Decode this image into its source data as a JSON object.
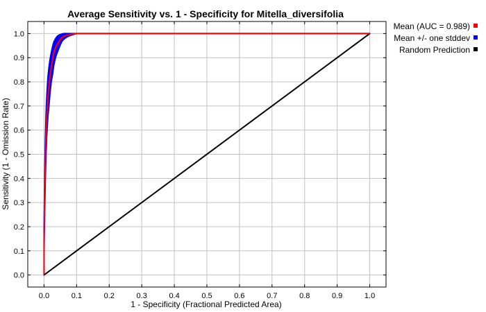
{
  "chart_data": {
    "type": "line",
    "title": "Average Sensitivity vs. 1 - Specificity for Mitella_diversifolia",
    "xlabel": "1 - Specificity (Fractional Predicted Area)",
    "ylabel": "Sensitivity (1 - Omission Rate)",
    "xlim": [
      -0.05,
      1.05
    ],
    "ylim": [
      -0.05,
      1.05
    ],
    "grid": true,
    "legend_position": "right-outside",
    "x_ticks": [
      "0.0",
      "0.1",
      "0.2",
      "0.3",
      "0.4",
      "0.5",
      "0.6",
      "0.7",
      "0.8",
      "0.9",
      "1.0"
    ],
    "y_ticks": [
      "0.0",
      "0.1",
      "0.2",
      "0.3",
      "0.4",
      "0.5",
      "0.6",
      "0.7",
      "0.8",
      "0.9",
      "1.0"
    ],
    "series": [
      {
        "name": "Mean (AUC = 0.989)",
        "color": "#ff0000",
        "x": [
          0.0,
          0.0,
          0.002,
          0.004,
          0.006,
          0.008,
          0.01,
          0.012,
          0.015,
          0.018,
          0.022,
          0.026,
          0.03,
          0.035,
          0.04,
          0.045,
          0.05,
          0.055,
          0.06,
          0.07,
          0.08,
          0.1,
          0.2,
          0.5,
          1.0
        ],
        "y": [
          0.0,
          0.15,
          0.35,
          0.48,
          0.58,
          0.65,
          0.7,
          0.74,
          0.78,
          0.82,
          0.86,
          0.89,
          0.92,
          0.94,
          0.955,
          0.965,
          0.975,
          0.983,
          0.988,
          0.993,
          0.996,
          1.0,
          1.0,
          1.0,
          1.0
        ]
      },
      {
        "name": "Mean +/- one stddev",
        "color": "#0000ff",
        "x": [
          0.0,
          0.0,
          0.002,
          0.004,
          0.006,
          0.008,
          0.01,
          0.012,
          0.015,
          0.018,
          0.022,
          0.026,
          0.03,
          0.035,
          0.04,
          0.045,
          0.05,
          0.055,
          0.06,
          0.07,
          0.08,
          0.1,
          0.2,
          0.5,
          1.0
        ],
        "upper": [
          0.0,
          0.2,
          0.42,
          0.56,
          0.66,
          0.73,
          0.78,
          0.82,
          0.86,
          0.89,
          0.92,
          0.945,
          0.965,
          0.978,
          0.988,
          0.993,
          0.996,
          0.998,
          1.0,
          1.0,
          1.0,
          1.0,
          1.0,
          1.0,
          1.0
        ],
        "lower": [
          0.0,
          0.1,
          0.28,
          0.4,
          0.5,
          0.57,
          0.62,
          0.66,
          0.7,
          0.75,
          0.8,
          0.83,
          0.87,
          0.9,
          0.92,
          0.937,
          0.954,
          0.968,
          0.976,
          0.986,
          0.992,
          1.0,
          1.0,
          1.0,
          1.0
        ]
      },
      {
        "name": "Random Prediction",
        "color": "#000000",
        "x": [
          0.0,
          1.0
        ],
        "y": [
          0.0,
          1.0
        ]
      }
    ]
  }
}
